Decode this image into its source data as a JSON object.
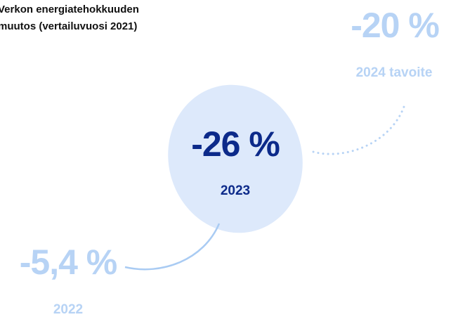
{
  "title_lines": [
    "Verkon energiatehokkuuden",
    "muutos (vertailuvuosi 2021)"
  ],
  "items": [
    {
      "value": "-20 %",
      "label": "2024 tavoite"
    },
    {
      "value": "-26 %",
      "label": "2023"
    },
    {
      "value": "-5,4 %",
      "label": "2022"
    }
  ]
}
